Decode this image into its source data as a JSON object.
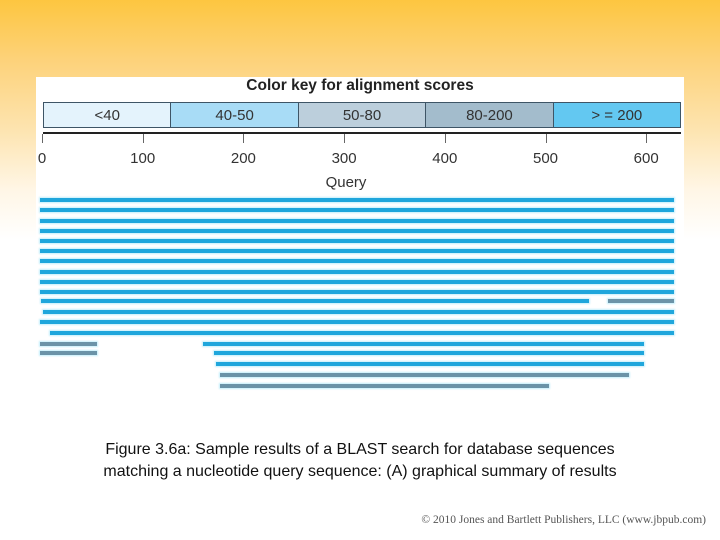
{
  "chart_data": {
    "type": "bar",
    "subtype": "horizontal-alignment-segments",
    "title": "Color key for alignment scores",
    "xlabel": "Query",
    "ylabel": "",
    "xlim": [
      0,
      630
    ],
    "x_ticks": [
      0,
      100,
      200,
      300,
      400,
      500,
      600
    ],
    "grid": false,
    "legend": {
      "position": "top",
      "entries": [
        {
          "label": "<40",
          "color": "#e4f3fc"
        },
        {
          "label": "40-50",
          "color": "#a8dcf6"
        },
        {
          "label": "50-80",
          "color": "#bccfdc"
        },
        {
          "label": "80-200",
          "color": "#a3bccc"
        },
        {
          "label": "> = 200",
          "color": "#63c8f1"
        }
      ]
    },
    "score_colors": {
      ">=200": "#1fa6dc",
      "80-200": "#6b93a8"
    },
    "rows": [
      {
        "segments": [
          {
            "start": 0,
            "end": 630,
            "score": ">=200"
          }
        ]
      },
      {
        "segments": [
          {
            "start": 0,
            "end": 630,
            "score": ">=200"
          }
        ]
      },
      {
        "segments": [
          {
            "start": 0,
            "end": 630,
            "score": ">=200"
          }
        ]
      },
      {
        "segments": [
          {
            "start": 0,
            "end": 630,
            "score": ">=200"
          }
        ]
      },
      {
        "segments": [
          {
            "start": 0,
            "end": 630,
            "score": ">=200"
          }
        ]
      },
      {
        "segments": [
          {
            "start": 0,
            "end": 630,
            "score": ">=200"
          }
        ]
      },
      {
        "segments": [
          {
            "start": 0,
            "end": 630,
            "score": ">=200"
          }
        ]
      },
      {
        "segments": [
          {
            "start": 0,
            "end": 630,
            "score": ">=200"
          }
        ]
      },
      {
        "segments": [
          {
            "start": 0,
            "end": 630,
            "score": ">=200"
          }
        ]
      },
      {
        "segments": [
          {
            "start": 0,
            "end": 630,
            "score": ">=200"
          }
        ]
      },
      {
        "segments": [
          {
            "start": 1,
            "end": 545,
            "score": ">=200"
          },
          {
            "start": 564,
            "end": 630,
            "score": "80-200"
          }
        ]
      },
      {
        "segments": [
          {
            "start": 3,
            "end": 630,
            "score": ">=200"
          }
        ]
      },
      {
        "segments": [
          {
            "start": 0,
            "end": 630,
            "score": ">=200"
          }
        ]
      },
      {
        "segments": [
          {
            "start": 10,
            "end": 630,
            "score": ">=200"
          }
        ]
      },
      {
        "segments": [
          {
            "start": 0,
            "end": 57,
            "score": "80-200"
          },
          {
            "start": 162,
            "end": 600,
            "score": ">=200"
          }
        ]
      },
      {
        "segments": [
          {
            "start": 0,
            "end": 57,
            "score": "80-200"
          },
          {
            "start": 173,
            "end": 600,
            "score": ">=200"
          }
        ]
      },
      {
        "segments": [
          {
            "start": 175,
            "end": 600,
            "score": ">=200"
          }
        ]
      },
      {
        "segments": [
          {
            "start": 179,
            "end": 585,
            "score": "80-200"
          }
        ]
      },
      {
        "segments": [
          {
            "start": 179,
            "end": 505,
            "score": "80-200"
          }
        ]
      }
    ]
  },
  "caption": {
    "line1": "Figure 3.6a: Sample results of a BLAST search for database sequences",
    "line2": "matching a nucleotide query sequence: (A) graphical summary of results"
  },
  "copyright": "© 2010 Jones and Bartlett Publishers, LLC (www.jbpub.com)"
}
